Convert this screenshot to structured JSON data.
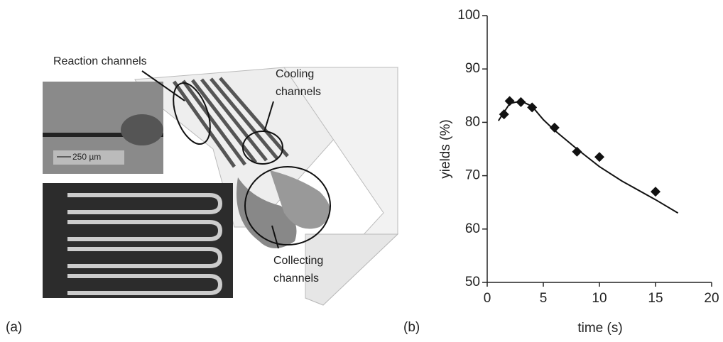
{
  "panel_a": {
    "label": "(a)",
    "reaction": "Reaction channels",
    "cooling": [
      "Cooling",
      "channels"
    ],
    "collecting": [
      "Collecting",
      "channels"
    ],
    "scale": "250 µm"
  },
  "chart_data": {
    "type": "scatter",
    "label": "(b)",
    "xlabel": "time (s)",
    "ylabel": "yields (%)",
    "xlim": [
      0,
      20
    ],
    "xticks": [
      0,
      5,
      10,
      15,
      20
    ],
    "ylim": [
      50,
      100
    ],
    "yticks": [
      50,
      60,
      70,
      80,
      90,
      100
    ],
    "series": [
      {
        "type": "scatter",
        "color": "#111111",
        "x": [
          1.5,
          2,
          3,
          4,
          6,
          8,
          10,
          15
        ],
        "values": [
          81.5,
          84,
          83.8,
          82.8,
          79,
          74.5,
          73.5,
          67
        ]
      },
      {
        "type": "line",
        "color": "#111111",
        "x": [
          1,
          2,
          3,
          4,
          5,
          6,
          8,
          10,
          12,
          15,
          17
        ],
        "values": [
          80.3,
          83.5,
          84,
          83,
          80.5,
          78.5,
          75,
          71.7,
          69,
          65.5,
          63
        ]
      }
    ]
  }
}
